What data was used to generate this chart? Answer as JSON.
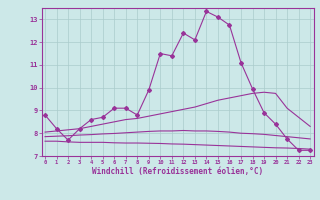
{
  "bg_color": "#cce8e8",
  "line_color": "#993399",
  "grid_color": "#aacccc",
  "xlabel": "Windchill (Refroidissement éolien,°C)",
  "xlabel_color": "#993399",
  "tick_color": "#993399",
  "spine_color": "#993399",
  "xmin": 0,
  "xmax": 23,
  "ymin": 7,
  "ymax": 13.5,
  "yticks": [
    7,
    8,
    9,
    10,
    11,
    12,
    13
  ],
  "series": [
    {
      "x": [
        0,
        1,
        2,
        3,
        4,
        5,
        6,
        7,
        8,
        9,
        10,
        11,
        12,
        13,
        14,
        15,
        16,
        17,
        18,
        19,
        20,
        21,
        22,
        23
      ],
      "y": [
        8.8,
        8.2,
        7.7,
        8.2,
        8.6,
        8.7,
        9.1,
        9.1,
        8.8,
        9.9,
        11.5,
        11.4,
        12.4,
        12.1,
        13.35,
        13.1,
        12.75,
        11.1,
        9.95,
        8.9,
        8.4,
        7.75,
        7.25,
        7.25
      ],
      "marker": true
    },
    {
      "x": [
        0,
        1,
        2,
        3,
        4,
        5,
        6,
        7,
        8,
        9,
        10,
        11,
        12,
        13,
        14,
        15,
        16,
        17,
        18,
        19,
        20,
        21,
        22,
        23
      ],
      "y": [
        8.05,
        8.1,
        8.15,
        8.2,
        8.3,
        8.4,
        8.5,
        8.6,
        8.65,
        8.75,
        8.85,
        8.95,
        9.05,
        9.15,
        9.3,
        9.45,
        9.55,
        9.65,
        9.75,
        9.8,
        9.75,
        9.1,
        8.7,
        8.3
      ],
      "marker": false
    },
    {
      "x": [
        0,
        1,
        2,
        3,
        4,
        5,
        6,
        7,
        8,
        9,
        10,
        11,
        12,
        13,
        14,
        15,
        16,
        17,
        18,
        19,
        20,
        21,
        22,
        23
      ],
      "y": [
        7.85,
        7.87,
        7.89,
        7.92,
        7.94,
        7.97,
        7.99,
        8.02,
        8.05,
        8.08,
        8.1,
        8.1,
        8.12,
        8.1,
        8.1,
        8.08,
        8.05,
        8.0,
        7.98,
        7.95,
        7.9,
        7.85,
        7.8,
        7.75
      ],
      "marker": false
    },
    {
      "x": [
        0,
        1,
        2,
        3,
        4,
        5,
        6,
        7,
        8,
        9,
        10,
        11,
        12,
        13,
        14,
        15,
        16,
        17,
        18,
        19,
        20,
        21,
        22,
        23
      ],
      "y": [
        7.65,
        7.65,
        7.62,
        7.6,
        7.6,
        7.6,
        7.58,
        7.57,
        7.57,
        7.56,
        7.55,
        7.53,
        7.52,
        7.5,
        7.48,
        7.46,
        7.44,
        7.42,
        7.4,
        7.38,
        7.36,
        7.35,
        7.33,
        7.3
      ],
      "marker": false
    }
  ]
}
